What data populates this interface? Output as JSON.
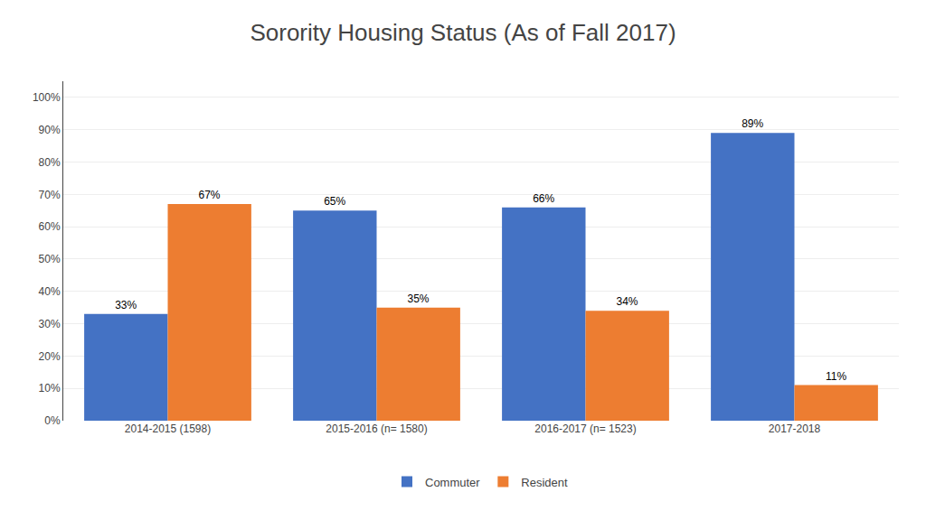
{
  "chart_data": {
    "type": "bar",
    "title": "Sorority Housing Status (As of Fall 2017)",
    "categories": [
      "2014-2015 (1598)",
      "2015-2016 (n= 1580)",
      "2016-2017 (n= 1523)",
      "2017-2018"
    ],
    "series": [
      {
        "name": "Commuter",
        "color": "#4472C4",
        "values": [
          33,
          65,
          66,
          89
        ],
        "value_labels": [
          "33%",
          "65%",
          "66%",
          "89%"
        ]
      },
      {
        "name": "Resident",
        "color": "#ED7D31",
        "values": [
          67,
          35,
          34,
          11
        ],
        "value_labels": [
          "67%",
          "35%",
          "34%",
          "11%"
        ]
      }
    ],
    "ylim": [
      0,
      105
    ],
    "yticks": [
      {
        "value": 0,
        "label": "0%"
      },
      {
        "value": 10,
        "label": "10%"
      },
      {
        "value": 20,
        "label": "20%"
      },
      {
        "value": 30,
        "label": "30%"
      },
      {
        "value": 40,
        "label": "40%"
      },
      {
        "value": 50,
        "label": "50%"
      },
      {
        "value": 60,
        "label": "60%"
      },
      {
        "value": 70,
        "label": "70%"
      },
      {
        "value": 80,
        "label": "80%"
      },
      {
        "value": 90,
        "label": "90%"
      },
      {
        "value": 100,
        "label": "100%"
      }
    ],
    "grid": true,
    "legend": "bottom",
    "data_labels": true
  }
}
